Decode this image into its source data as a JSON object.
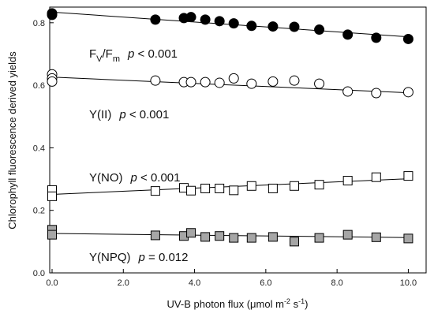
{
  "chart_data": {
    "type": "scatter",
    "xlabel_parts": [
      "UV-B photon flux (",
      "μ",
      "mol m",
      "-2",
      " s",
      "-1",
      ")"
    ],
    "ylabel": "Chlorophyll fluorescence derived yields",
    "xlim": [
      0,
      10.5
    ],
    "ylim": [
      0,
      0.85
    ],
    "x_ticks": [
      0,
      2,
      4,
      6,
      8,
      10
    ],
    "x_tick_labels": [
      "0.0",
      "2.0",
      "4.0",
      "6.0",
      "8.0",
      "10.0"
    ],
    "y_ticks": [
      0,
      0.2,
      0.4,
      0.6,
      0.8
    ],
    "y_tick_labels": [
      "0.0",
      "0.2",
      "0.4",
      "0.6",
      "0.8"
    ],
    "grid": false,
    "series": [
      {
        "key": "fvfm",
        "marker": "filled-circle",
        "color": "#000000",
        "label_parts": [
          "F",
          "V",
          "/F",
          "m",
          "p",
          " < 0.001"
        ],
        "x": [
          0,
          0,
          2.9,
          3.7,
          3.9,
          4.3,
          4.7,
          5.1,
          5.6,
          6.2,
          6.8,
          7.5,
          8.3,
          9.1,
          10.0
        ],
        "y": [
          0.83,
          0.825,
          0.81,
          0.815,
          0.818,
          0.81,
          0.805,
          0.798,
          0.79,
          0.788,
          0.787,
          0.778,
          0.762,
          0.752,
          0.748
        ],
        "trend": [
          0.834,
          0.755
        ]
      },
      {
        "key": "yii",
        "marker": "open-circle",
        "color": "#000000",
        "label_parts": [
          "Y(II)",
          "p",
          " < 0.001"
        ],
        "x": [
          0,
          0,
          0,
          2.9,
          3.7,
          3.9,
          4.3,
          4.7,
          5.1,
          5.6,
          6.2,
          6.8,
          7.5,
          8.3,
          9.1,
          10.0
        ],
        "y": [
          0.635,
          0.622,
          0.612,
          0.615,
          0.61,
          0.61,
          0.61,
          0.608,
          0.622,
          0.605,
          0.612,
          0.615,
          0.605,
          0.58,
          0.575,
          0.578
        ],
        "trend": [
          0.626,
          0.576
        ]
      },
      {
        "key": "yno",
        "marker": "open-square",
        "color": "#000000",
        "label_parts": [
          "Y(NO)",
          "p",
          " < 0.001"
        ],
        "x": [
          0,
          0,
          2.9,
          3.7,
          3.9,
          4.3,
          4.7,
          5.1,
          5.6,
          6.2,
          6.8,
          7.5,
          8.3,
          9.1,
          10.0
        ],
        "y": [
          0.265,
          0.245,
          0.262,
          0.272,
          0.263,
          0.27,
          0.27,
          0.264,
          0.278,
          0.27,
          0.278,
          0.282,
          0.295,
          0.306,
          0.31
        ],
        "trend": [
          0.251,
          0.301
        ]
      },
      {
        "key": "ynpq",
        "marker": "filled-square",
        "color": "#a6a6a6",
        "label_parts": [
          "Y(NPQ)",
          "p",
          " = 0.012"
        ],
        "x": [
          0,
          0,
          2.9,
          3.7,
          3.9,
          4.3,
          4.7,
          5.1,
          5.6,
          6.2,
          6.8,
          7.5,
          8.3,
          9.1,
          10.0
        ],
        "y": [
          0.138,
          0.122,
          0.12,
          0.118,
          0.128,
          0.115,
          0.118,
          0.112,
          0.112,
          0.115,
          0.1,
          0.112,
          0.122,
          0.114,
          0.11
        ],
        "trend": [
          0.126,
          0.113
        ]
      }
    ]
  }
}
